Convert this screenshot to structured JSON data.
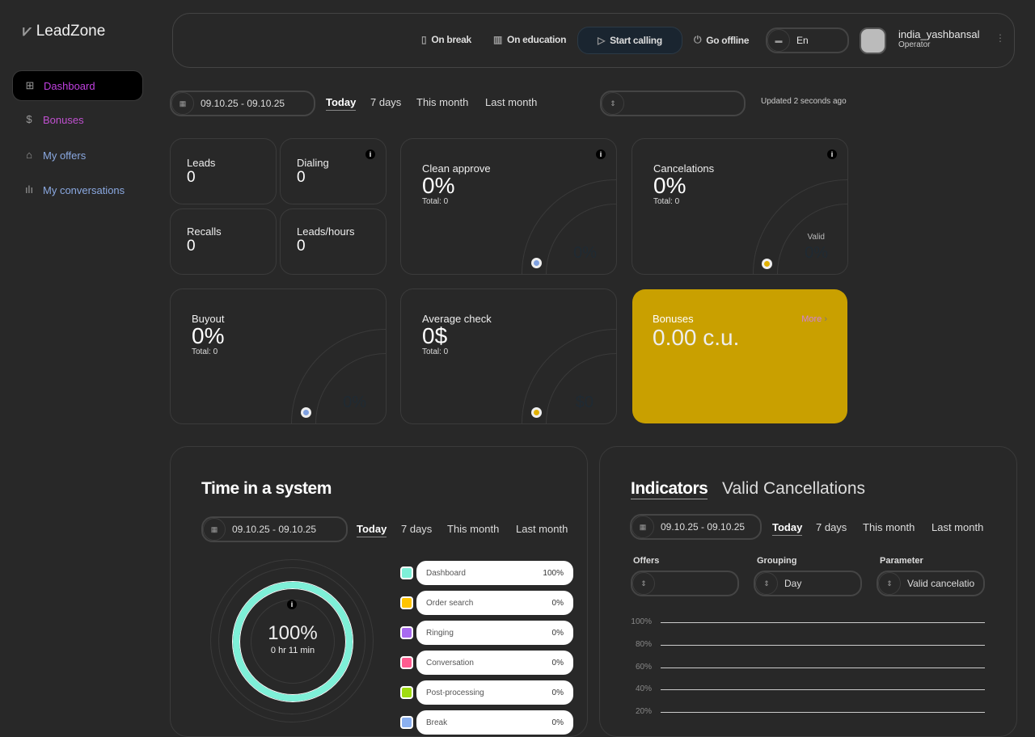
{
  "app": {
    "name": "LeadZone"
  },
  "sidebar": {
    "items": [
      {
        "label": "Dashboard",
        "icon": "grid-icon",
        "color": "#c040e0",
        "active": true
      },
      {
        "label": "Bonuses",
        "icon": "dollar-coin-icon",
        "color": "#c050d0"
      },
      {
        "label": "My offers",
        "icon": "bag-icon",
        "color": "#8aa8e0"
      },
      {
        "label": "My conversations",
        "icon": "sound-wave-icon",
        "color": "#8aa8e0"
      }
    ]
  },
  "header": {
    "on_break": "On break",
    "on_education": "On education",
    "start_calling": "Start calling",
    "go_offline": "Go offline",
    "language": "En",
    "user_name": "india_yashbansal",
    "user_role": "Operator"
  },
  "filters": {
    "date_range": "09.10.25 - 09.10.25",
    "periods": [
      "Today",
      "7 days",
      "This month",
      "Last month"
    ],
    "selected": "Today",
    "offer_select": "",
    "updated": "Updated 2 seconds ago"
  },
  "stats": {
    "leads": {
      "label": "Leads",
      "value": "0"
    },
    "dialing": {
      "label": "Dialing",
      "value": "0"
    },
    "recalls": {
      "label": "Recalls",
      "value": "0"
    },
    "leads_hours": {
      "label": "Leads/hours",
      "value": "0"
    },
    "clean_approve": {
      "label": "Clean approve",
      "value": "0%",
      "total": "Total: 0",
      "gauge": "0%"
    },
    "cancelations": {
      "label": "Cancelations",
      "value": "0%",
      "total": "Total: 0",
      "gauge_label": "Valid",
      "gauge": "0%"
    },
    "buyout": {
      "label": "Buyout",
      "value": "0%",
      "total": "Total: 0",
      "gauge": "0%"
    },
    "average_check": {
      "label": "Average check",
      "value": "0$",
      "total": "Total: 0",
      "gauge": "$0"
    },
    "bonuses": {
      "label": "Bonuses",
      "value": "0.00 c.u.",
      "more": "More",
      "color": "#c9a000"
    }
  },
  "time_system": {
    "title": "Time in a system",
    "date_range": "09.10.25 - 09.10.25",
    "periods": [
      "Today",
      "7 days",
      "This month",
      "Last month"
    ],
    "percent": "100%",
    "duration": "0 hr 11 min",
    "legend": [
      {
        "label": "Dashboard",
        "value": "100%",
        "color": "#7ef0d8"
      },
      {
        "label": "Order search",
        "value": "0%",
        "color": "#ffc400"
      },
      {
        "label": "Ringing",
        "value": "0%",
        "color": "#a86af0"
      },
      {
        "label": "Conversation",
        "value": "0%",
        "color": "#ff5c90"
      },
      {
        "label": "Post-processing",
        "value": "0%",
        "color": "#a0dc10"
      },
      {
        "label": "Break",
        "value": "0%",
        "color": "#8ab0f0"
      }
    ]
  },
  "indicators": {
    "tab_active": "Indicators",
    "tab_other": "Valid Cancellations",
    "date_range": "09.10.25 - 09.10.25",
    "periods": [
      "Today",
      "7 days",
      "This month",
      "Last month"
    ],
    "offers_label": "Offers",
    "offers_value": "",
    "grouping_label": "Grouping",
    "grouping_value": "Day",
    "parameter_label": "Parameter",
    "parameter_value": "Valid cancelatio"
  },
  "chart_data": {
    "type": "line",
    "series": [],
    "yticks": [
      "100%",
      "80%",
      "60%",
      "40%",
      "20%"
    ],
    "ylim": [
      0,
      100
    ],
    "grid": true
  }
}
